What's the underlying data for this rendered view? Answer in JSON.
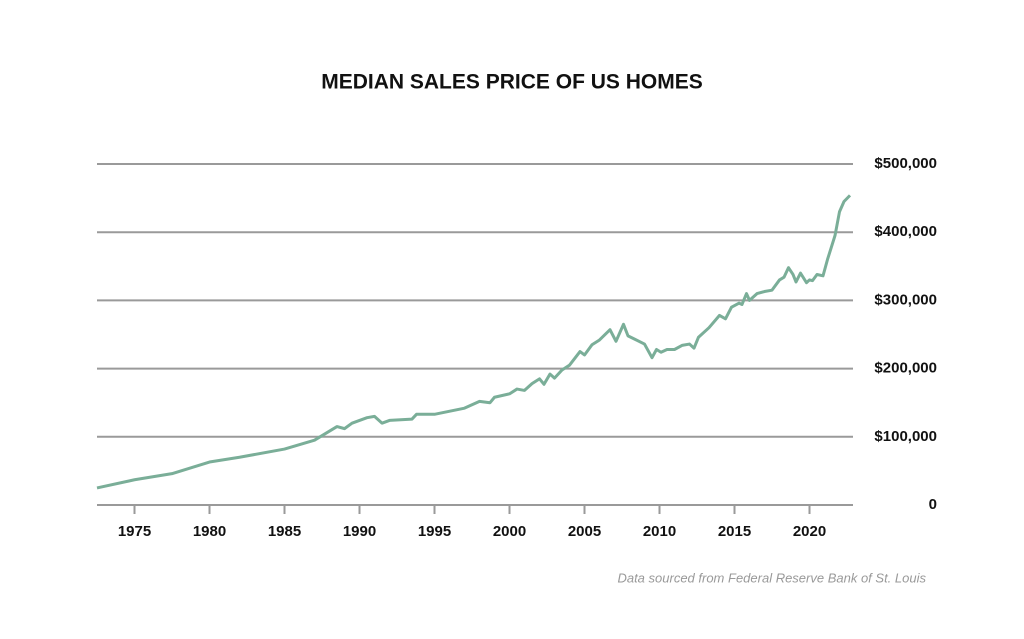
{
  "chart_data": {
    "type": "line",
    "title": "MEDIAN SALES PRICE OF US HOMES",
    "note": "Data sourced from Federal Reserve Bank of St. Louis",
    "color": "#7aae98",
    "grid": true,
    "x": [
      1972.5,
      1975,
      1977.5,
      1980,
      1982,
      1985,
      1987,
      1988.5,
      1989,
      1989.5,
      1990.5,
      1991,
      1991.5,
      1992,
      1993.5,
      1993.8,
      1995,
      1997,
      1998,
      1998.7,
      1999,
      2000,
      2000.5,
      2001,
      2001.5,
      2002,
      2002.3,
      2002.7,
      2003,
      2003.5,
      2004,
      2004.7,
      2005,
      2005.5,
      2006,
      2006.7,
      2007.1,
      2007.6,
      2007.9,
      2009,
      2009.5,
      2009.8,
      2010.1,
      2010.5,
      2011,
      2011.5,
      2012,
      2012.3,
      2012.6,
      2013.3,
      2014,
      2014.4,
      2014.8,
      2015.3,
      2015.5,
      2015.8,
      2016,
      2016.5,
      2017,
      2017.5,
      2018,
      2018.3,
      2018.6,
      2018.9,
      2019.1,
      2019.4,
      2019.8,
      2020,
      2020.2,
      2020.5,
      2020.9,
      2021.2,
      2021.7,
      2022,
      2022.3,
      2022.7
    ],
    "values": [
      25000,
      37000,
      46000,
      63000,
      70000,
      82000,
      95000,
      115000,
      112000,
      120000,
      128000,
      130000,
      120000,
      124000,
      126000,
      133000,
      133000,
      142000,
      152000,
      150000,
      158000,
      163000,
      170000,
      168000,
      178000,
      185000,
      177000,
      192000,
      186000,
      198000,
      205000,
      225000,
      220000,
      235000,
      242000,
      257000,
      240000,
      265000,
      248000,
      236000,
      216000,
      228000,
      224000,
      228000,
      228000,
      234000,
      236000,
      230000,
      246000,
      260000,
      278000,
      273000,
      290000,
      296000,
      294000,
      310000,
      300000,
      310000,
      313000,
      315000,
      330000,
      334000,
      348000,
      338000,
      327000,
      340000,
      326000,
      330000,
      329000,
      338000,
      336000,
      360000,
      395000,
      430000,
      445000,
      454000
    ],
    "xlim": [
      1972.5,
      2022.9
    ],
    "xticks": [
      1975,
      1980,
      1985,
      1990,
      1995,
      2000,
      2005,
      2010,
      2015,
      2020
    ],
    "ylim": [
      0,
      500000
    ],
    "yticks": [
      0,
      {
        "value": 100000,
        "label": "$100,000"
      },
      {
        "value": 200000,
        "label": "$200,000"
      },
      {
        "value": 300000,
        "label": "$300,000"
      },
      {
        "value": 400000,
        "label": "$400,000"
      },
      {
        "value": 500000,
        "label": "$500,000"
      }
    ]
  }
}
